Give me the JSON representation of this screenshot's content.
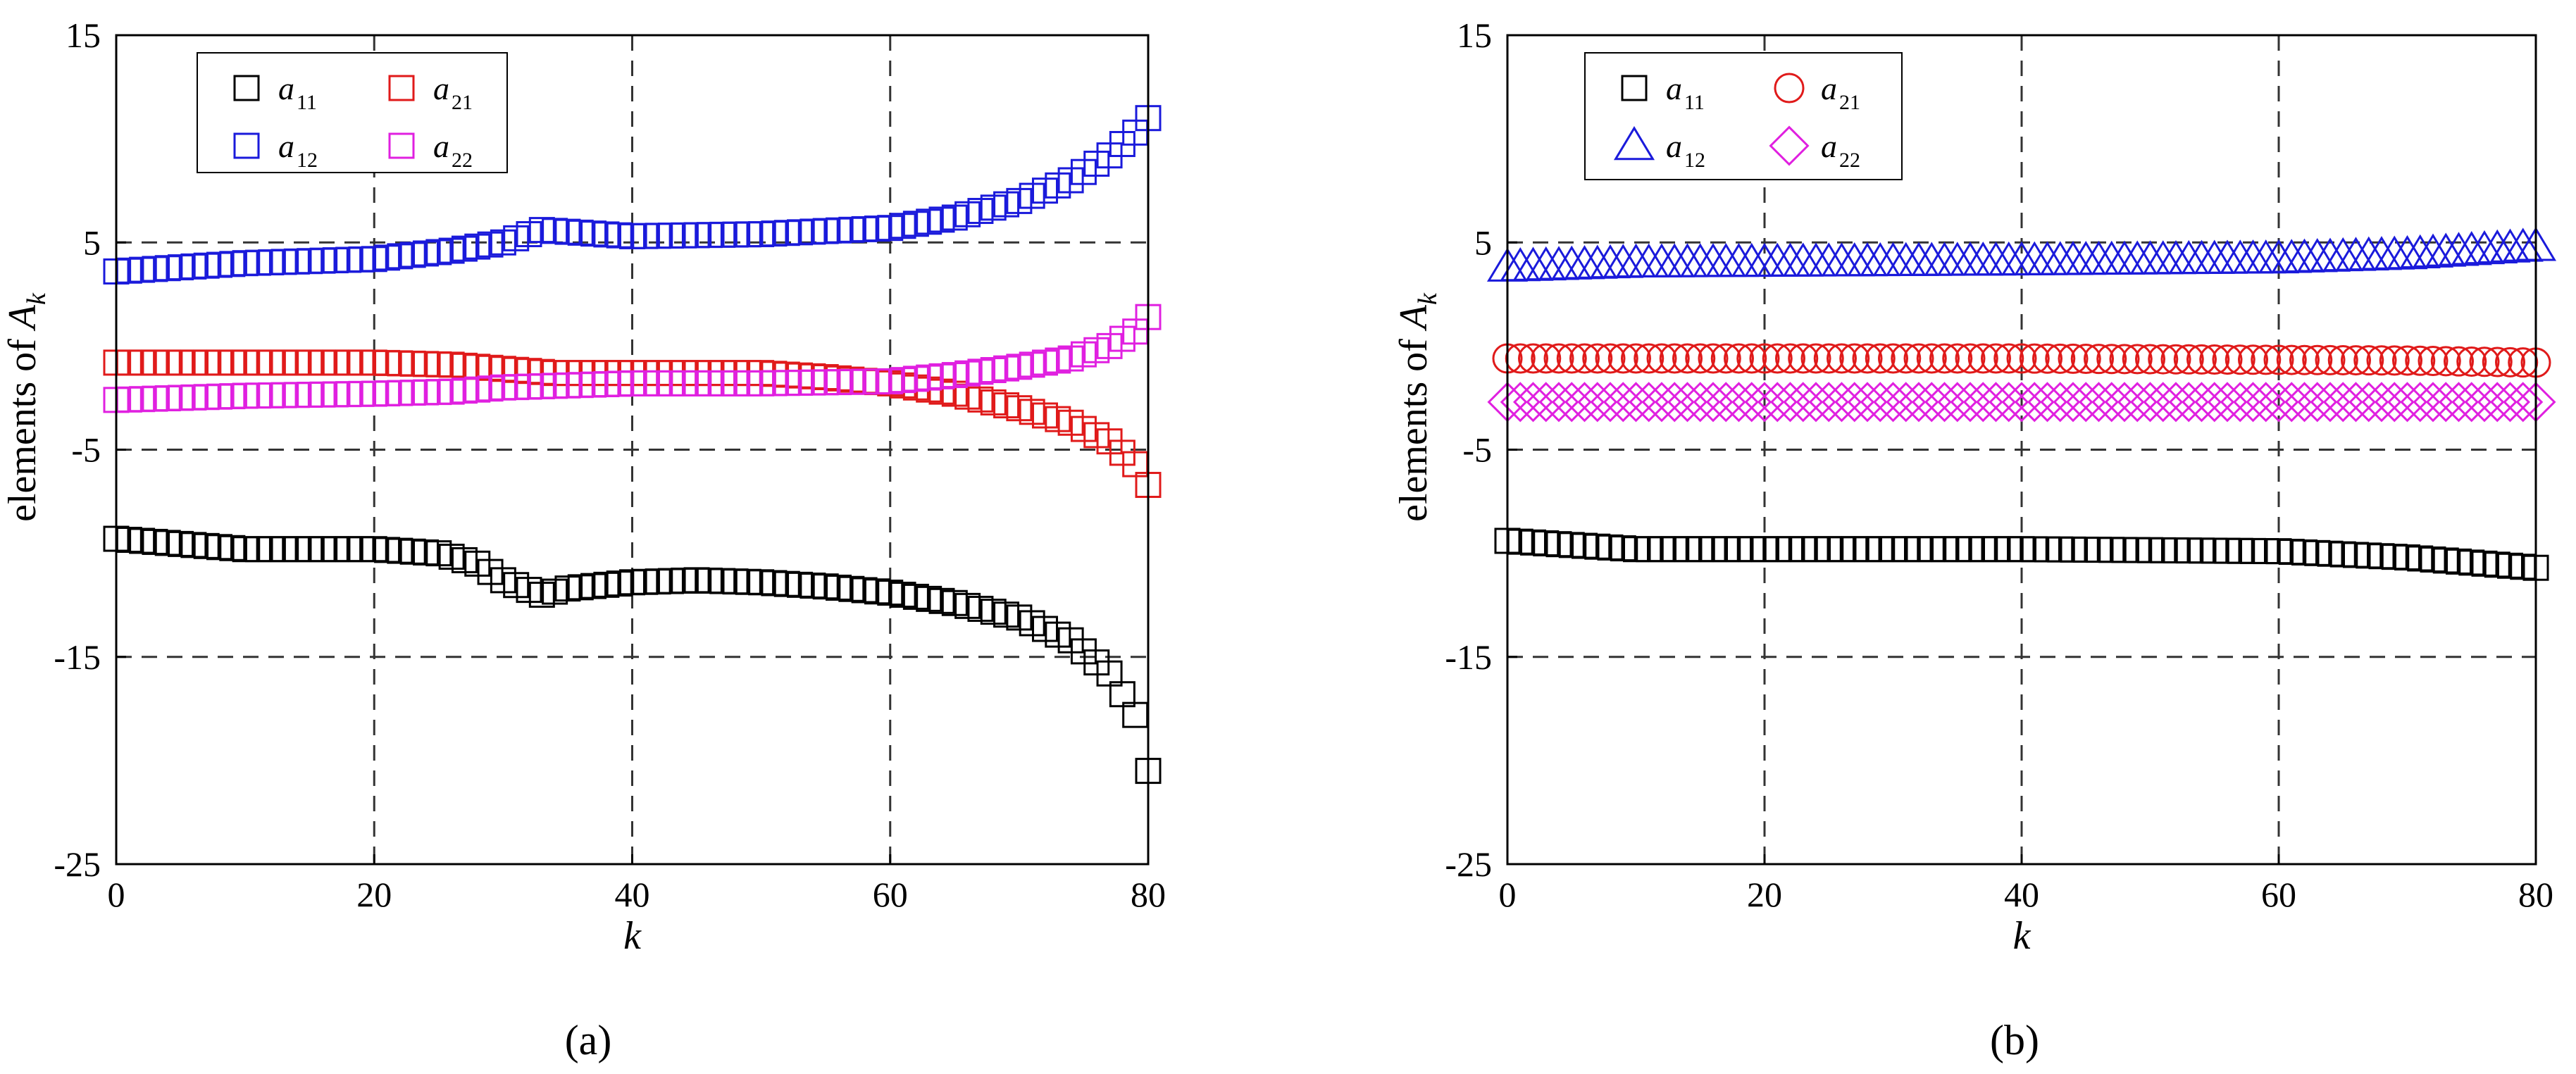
{
  "colors": {
    "a11": "#000000",
    "a12": "#1a1adb",
    "a21": "#e01a1a",
    "a22": "#e020e0"
  },
  "chart_data": [
    {
      "type": "scatter",
      "panel_label": "(a)",
      "ylabel": "elements of A_k",
      "xlabel": "k",
      "xlim": [
        0,
        80
      ],
      "ylim": [
        -25,
        15
      ],
      "xticks": [
        "0",
        "20",
        "40",
        "60",
        "80"
      ],
      "yticks": [
        "15",
        "5",
        "-5",
        "-15",
        "-25"
      ],
      "grid": "dashed",
      "legend_position": "top-left",
      "series": [
        {
          "name": "a11",
          "marker": "square",
          "color": "#000000",
          "keys": [
            [
              0,
              -9.3
            ],
            [
              10,
              -9.8
            ],
            [
              20,
              -9.8
            ],
            [
              25,
              -10.0
            ],
            [
              28,
              -10.5
            ],
            [
              30,
              -11.3
            ],
            [
              33,
              -12.0
            ],
            [
              35,
              -11.7
            ],
            [
              40,
              -11.4
            ],
            [
              45,
              -11.3
            ],
            [
              50,
              -11.4
            ],
            [
              55,
              -11.6
            ],
            [
              60,
              -11.9
            ],
            [
              65,
              -12.4
            ],
            [
              70,
              -13.1
            ],
            [
              74,
              -14.2
            ],
            [
              77,
              -15.8
            ],
            [
              79,
              -17.8
            ],
            [
              80,
              -20.5
            ]
          ]
        },
        {
          "name": "a12",
          "marker": "square",
          "color": "#1a1adb",
          "keys": [
            [
              0,
              3.6
            ],
            [
              10,
              4.0
            ],
            [
              20,
              4.2
            ],
            [
              26,
              4.6
            ],
            [
              30,
              5.0
            ],
            [
              33,
              5.6
            ],
            [
              40,
              5.3
            ],
            [
              50,
              5.4
            ],
            [
              60,
              5.7
            ],
            [
              65,
              6.2
            ],
            [
              70,
              7.0
            ],
            [
              74,
              8.0
            ],
            [
              77,
              9.2
            ],
            [
              79,
              10.3
            ],
            [
              80,
              11.0
            ]
          ]
        },
        {
          "name": "a21",
          "marker": "square",
          "color": "#e01a1a",
          "keys": [
            [
              0,
              -0.8
            ],
            [
              10,
              -0.8
            ],
            [
              20,
              -0.8
            ],
            [
              26,
              -0.9
            ],
            [
              30,
              -1.1
            ],
            [
              34,
              -1.3
            ],
            [
              40,
              -1.3
            ],
            [
              50,
              -1.3
            ],
            [
              55,
              -1.5
            ],
            [
              60,
              -1.8
            ],
            [
              65,
              -2.3
            ],
            [
              70,
              -3.0
            ],
            [
              74,
              -3.7
            ],
            [
              77,
              -4.6
            ],
            [
              79,
              -5.7
            ],
            [
              80,
              -6.7
            ]
          ]
        },
        {
          "name": "a22",
          "marker": "square",
          "color": "#e020e0",
          "keys": [
            [
              0,
              -2.6
            ],
            [
              10,
              -2.4
            ],
            [
              20,
              -2.3
            ],
            [
              26,
              -2.2
            ],
            [
              30,
              -2.0
            ],
            [
              35,
              -1.9
            ],
            [
              40,
              -1.8
            ],
            [
              50,
              -1.8
            ],
            [
              60,
              -1.7
            ],
            [
              65,
              -1.4
            ],
            [
              70,
              -1.0
            ],
            [
              74,
              -0.6
            ],
            [
              77,
              0.0
            ],
            [
              79,
              0.7
            ],
            [
              80,
              1.4
            ]
          ]
        }
      ]
    },
    {
      "type": "scatter",
      "panel_label": "(b)",
      "ylabel": "elements of A_k",
      "xlabel": "k",
      "xlim": [
        0,
        80
      ],
      "ylim": [
        -25,
        15
      ],
      "xticks": [
        "0",
        "20",
        "40",
        "60",
        "80"
      ],
      "yticks": [
        "15",
        "5",
        "-5",
        "-15",
        "-25"
      ],
      "grid": "dashed",
      "legend_position": "top-left",
      "series": [
        {
          "name": "a11",
          "marker": "square",
          "color": "#000000",
          "keys": [
            [
              0,
              -9.4
            ],
            [
              10,
              -9.8
            ],
            [
              40,
              -9.8
            ],
            [
              60,
              -9.9
            ],
            [
              70,
              -10.2
            ],
            [
              80,
              -10.7
            ]
          ]
        },
        {
          "name": "a12",
          "marker": "triangle",
          "color": "#1a1adb",
          "keys": [
            [
              0,
              3.8
            ],
            [
              10,
              4.0
            ],
            [
              40,
              4.1
            ],
            [
              60,
              4.2
            ],
            [
              70,
              4.4
            ],
            [
              80,
              4.8
            ]
          ]
        },
        {
          "name": "a21",
          "marker": "circle",
          "color": "#e01a1a",
          "keys": [
            [
              0,
              -0.6
            ],
            [
              40,
              -0.6
            ],
            [
              70,
              -0.7
            ],
            [
              80,
              -0.8
            ]
          ]
        },
        {
          "name": "a22",
          "marker": "diamond",
          "color": "#e020e0",
          "keys": [
            [
              0,
              -2.7
            ],
            [
              40,
              -2.7
            ],
            [
              80,
              -2.7
            ]
          ]
        }
      ]
    }
  ]
}
